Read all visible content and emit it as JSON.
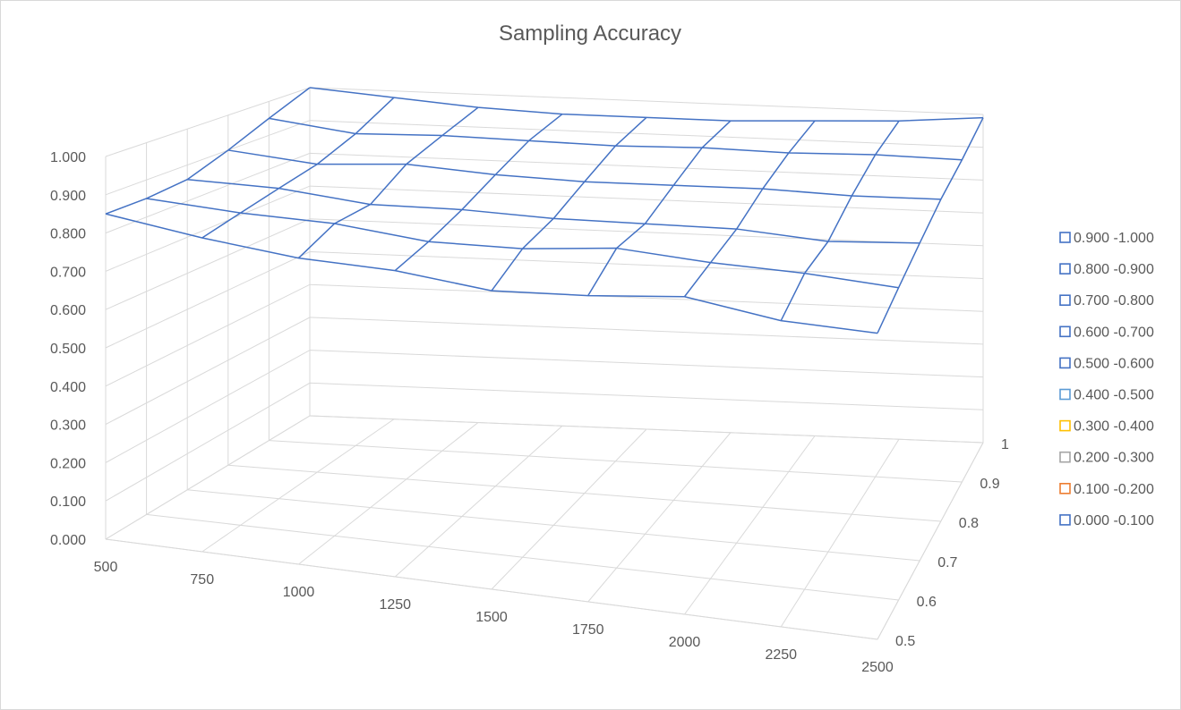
{
  "chart_data": {
    "type": "surface-3d-wireframe",
    "title": "Sampling Accuracy",
    "x_categories": [
      "500",
      "750",
      "1000",
      "1250",
      "1500",
      "1750",
      "2000",
      "2250",
      "2500"
    ],
    "depth_categories": [
      "0.5",
      "0.6",
      "0.7",
      "0.8",
      "0.9",
      "1"
    ],
    "z_ticks": [
      "0.000",
      "0.100",
      "0.200",
      "0.300",
      "0.400",
      "0.500",
      "0.600",
      "0.700",
      "0.800",
      "0.900",
      "1.000"
    ],
    "zlim": [
      0,
      1
    ],
    "grid": true,
    "legend_position": "right",
    "values_by_depth": [
      [
        0.85,
        0.82,
        0.8,
        0.8,
        0.78,
        0.8,
        0.83,
        0.8,
        0.8
      ],
      [
        0.85,
        0.84,
        0.84,
        0.82,
        0.83,
        0.86,
        0.85,
        0.85,
        0.84
      ],
      [
        0.86,
        0.86,
        0.84,
        0.85,
        0.85,
        0.86,
        0.87,
        0.86,
        0.88
      ],
      [
        0.9,
        0.88,
        0.9,
        0.89,
        0.89,
        0.9,
        0.91,
        0.91,
        0.92
      ],
      [
        0.95,
        0.92,
        0.93,
        0.93,
        0.93,
        0.94,
        0.94,
        0.95,
        0.95
      ],
      [
        1.0,
        0.98,
        0.96,
        0.95,
        0.95,
        0.95,
        0.96,
        0.97,
        0.99
      ]
    ],
    "legend": [
      {
        "label": "0.900 -1.000",
        "color": "#4472c4"
      },
      {
        "label": "0.800 -0.900",
        "color": "#4472c4"
      },
      {
        "label": "0.700 -0.800",
        "color": "#4472c4"
      },
      {
        "label": "0.600 -0.700",
        "color": "#4472c4"
      },
      {
        "label": "0.500 -0.600",
        "color": "#4472c4"
      },
      {
        "label": "0.400 -0.500",
        "color": "#5b9bd5"
      },
      {
        "label": "0.300 -0.400",
        "color": "#ffc000"
      },
      {
        "label": "0.200 -0.300",
        "color": "#a5a5a5"
      },
      {
        "label": "0.100 -0.200",
        "color": "#ed7d31"
      },
      {
        "label": "0.000 -0.100",
        "color": "#4472c4"
      }
    ]
  }
}
